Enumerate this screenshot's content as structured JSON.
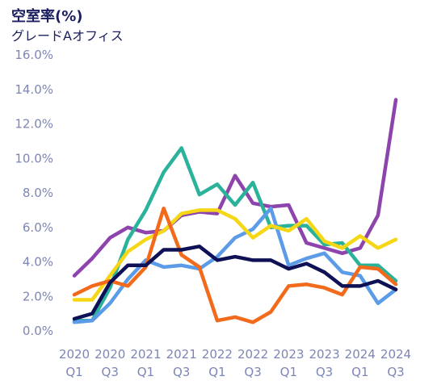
{
  "chart_data": {
    "type": "line",
    "title": "空室率(%)",
    "subtitle": "グレードAオフィス",
    "ylim": [
      0,
      16
    ],
    "yticks": [
      "0.0%",
      "2.0%",
      "4.0%",
      "6.0%",
      "8.0%",
      "10.0%",
      "12.0%",
      "14.0%",
      "16.0%"
    ],
    "x": [
      "2020Q1",
      "2020Q2",
      "2020Q3",
      "2020Q4",
      "2021Q1",
      "2021Q2",
      "2021Q3",
      "2021Q4",
      "2022Q1",
      "2022Q2",
      "2022Q3",
      "2022Q4",
      "2023Q1",
      "2023Q2",
      "2023Q3",
      "2023Q4",
      "2024Q1",
      "2024Q2",
      "2024Q3"
    ],
    "xtick_labels": [
      {
        "index": 0,
        "year": "2020",
        "q": "Q1"
      },
      {
        "index": 2,
        "year": "2020",
        "q": "Q3"
      },
      {
        "index": 4,
        "year": "2021",
        "q": "Q1"
      },
      {
        "index": 6,
        "year": "2021",
        "q": "Q3"
      },
      {
        "index": 8,
        "year": "2022",
        "q": "Q1"
      },
      {
        "index": 10,
        "year": "2022",
        "q": "Q3"
      },
      {
        "index": 12,
        "year": "2023",
        "q": "Q1"
      },
      {
        "index": 14,
        "year": "2023",
        "q": "Q3"
      },
      {
        "index": 16,
        "year": "2024",
        "q": "Q1"
      },
      {
        "index": 18,
        "year": "2024",
        "q": "Q3"
      }
    ],
    "grid": false,
    "legend": "none",
    "series": [
      {
        "color": "#8e44ad",
        "values": [
          3.2,
          4.2,
          5.4,
          6.0,
          5.7,
          5.8,
          6.7,
          6.9,
          6.8,
          9.0,
          7.4,
          7.2,
          7.3,
          5.1,
          4.8,
          4.5,
          4.8,
          6.7,
          13.4
        ]
      },
      {
        "color": "#2ab39a",
        "values": [
          0.6,
          0.6,
          2.5,
          5.3,
          7.0,
          9.2,
          10.6,
          7.9,
          8.5,
          7.3,
          8.6,
          6.0,
          6.1,
          6.1,
          5.0,
          5.1,
          3.8,
          3.8,
          2.9
        ]
      },
      {
        "color": "#5b9be8",
        "values": [
          0.5,
          0.6,
          1.6,
          3.0,
          4.1,
          3.7,
          3.8,
          3.6,
          4.3,
          5.4,
          5.9,
          7.1,
          3.8,
          4.2,
          4.5,
          3.4,
          3.2,
          1.6,
          2.4
        ]
      },
      {
        "color": "#f5d716",
        "values": [
          1.8,
          1.8,
          3.2,
          4.6,
          5.3,
          5.8,
          6.8,
          7.0,
          7.0,
          6.5,
          5.4,
          6.1,
          5.8,
          6.5,
          5.2,
          4.8,
          5.5,
          4.8,
          5.3
        ]
      },
      {
        "color": "#f26a1b",
        "values": [
          2.1,
          2.6,
          2.9,
          2.6,
          3.7,
          7.1,
          4.4,
          3.7,
          0.6,
          0.8,
          0.5,
          1.1,
          2.6,
          2.7,
          2.5,
          2.1,
          3.7,
          3.6,
          2.7
        ]
      },
      {
        "color": "#0e1156",
        "values": [
          0.7,
          1.0,
          2.8,
          3.8,
          3.8,
          4.7,
          4.7,
          4.9,
          4.1,
          4.3,
          4.1,
          4.1,
          3.6,
          3.9,
          3.4,
          2.6,
          2.6,
          2.9,
          2.4
        ]
      }
    ]
  }
}
